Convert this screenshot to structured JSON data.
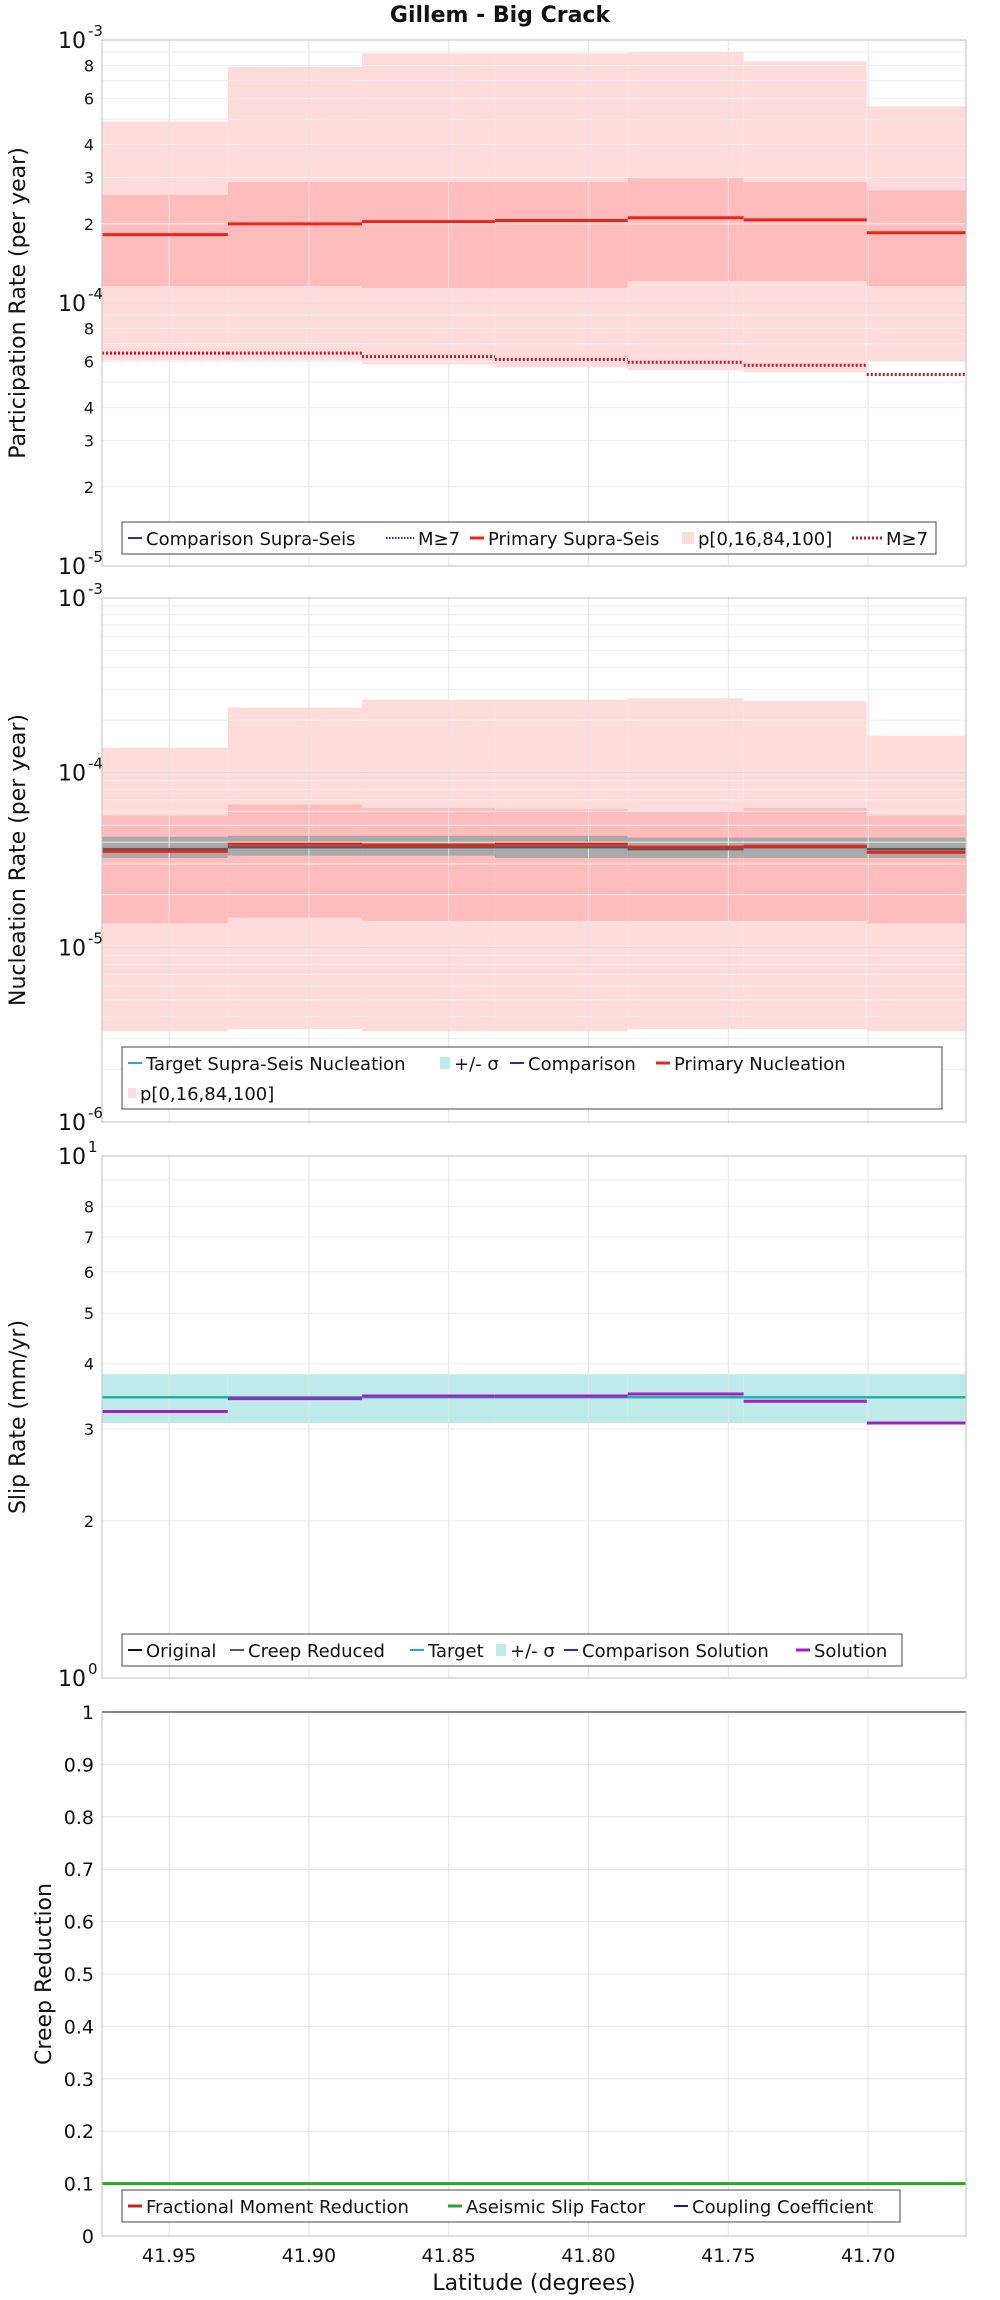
{
  "title": "Gillem - Big Crack",
  "colors": {
    "primary": "#e8241b",
    "band_outer": "#ffdcdc",
    "band_inner": "#ffbcbc",
    "comparison": "#2b2bb8",
    "target": "#22b2a6",
    "target_band": "#bfeaea",
    "gray_band": "#a9a9a9",
    "gray_line": "#5a5a5a",
    "solution": "#a31fc4",
    "aseismic": "#22aa22",
    "fractional": "#d11a1a",
    "coupling": "#1a1a8c"
  },
  "chart_data": [
    {
      "id": "participation",
      "type": "line",
      "step": true,
      "ylabel": "Participation Rate (per year)",
      "yscale": "log",
      "ylim": [
        1e-05,
        0.001
      ],
      "xlim": [
        41.974,
        41.665
      ],
      "x_edges": [
        41.974,
        41.929,
        41.881,
        41.8335,
        41.786,
        41.7445,
        41.7005,
        41.665
      ],
      "series": [
        {
          "name": "Primary Supra-Seis",
          "values": [
            0.000182,
            0.0002,
            0.000204,
            0.000206,
            0.000211,
            0.000207,
            0.000185
          ]
        },
        {
          "name": "M≥7",
          "values": [
            6.45e-05,
            6.45e-05,
            6.25e-05,
            6.1e-05,
            5.95e-05,
            5.8e-05,
            5.35e-05
          ]
        }
      ],
      "bands": [
        {
          "name": "p[0,16,84,100]",
          "lower": [
            6.05e-05,
            6.05e-05,
            5.85e-05,
            5.7e-05,
            5.55e-05,
            5.45e-05,
            6e-05
          ],
          "upper": [
            0.00049,
            0.00079,
            0.00089,
            0.00089,
            0.0009,
            0.00083,
            0.00056
          ]
        },
        {
          "name": "p[0,16,84,100]",
          "lower": [
            0.000116,
            0.000116,
            0.000114,
            0.000114,
            0.000121,
            0.000121,
            0.000116
          ],
          "upper": [
            0.000258,
            0.000288,
            0.000288,
            0.000288,
            0.000298,
            0.000288,
            0.000268
          ]
        }
      ],
      "legend": [
        "Comparison Supra-Seis",
        "M≥7",
        "Primary Supra-Seis",
        "p[0,16,84,100]",
        "M≥7"
      ]
    },
    {
      "id": "nucleation",
      "type": "line",
      "step": true,
      "ylabel": "Nucleation Rate (per year)",
      "yscale": "log",
      "ylim": [
        1e-06,
        0.001
      ],
      "xlim": [
        41.974,
        41.665
      ],
      "x_edges": [
        41.974,
        41.929,
        41.881,
        41.8335,
        41.786,
        41.7445,
        41.7005,
        41.665
      ],
      "series": [
        {
          "name": "Primary Nucleation",
          "values": [
            3.55e-05,
            3.9e-05,
            3.85e-05,
            3.9e-05,
            3.75e-05,
            3.8e-05,
            3.5e-05
          ]
        },
        {
          "name": "Comparison",
          "values": [
            3.65e-05,
            3.75e-05,
            3.75e-05,
            3.75e-05,
            3.65e-05,
            3.75e-05,
            3.65e-05
          ]
        }
      ],
      "bands": [
        {
          "name": "p[0,16,84,100]",
          "lower": [
            3.3e-06,
            3.4e-06,
            3.3e-06,
            3.3e-06,
            3.4e-06,
            3.4e-06,
            3.3e-06
          ],
          "upper": [
            0.000139,
            0.000236,
            0.000262,
            0.000262,
            0.000267,
            0.000257,
            0.000163
          ]
        },
        {
          "name": "p[0,16,84,100]",
          "lower": [
            1.37e-05,
            1.48e-05,
            1.42e-05,
            1.42e-05,
            1.42e-05,
            1.42e-05,
            1.37e-05
          ],
          "upper": [
            5.68e-05,
            6.58e-05,
            6.28e-05,
            6.18e-05,
            5.98e-05,
            6.28e-05,
            5.68e-05
          ]
        },
        {
          "name": "+/- σ",
          "lower": [
            3.25e-05,
            3.35e-05,
            3.35e-05,
            3.25e-05,
            3.25e-05,
            3.25e-05,
            3.25e-05
          ],
          "upper": [
            4.3e-05,
            4.35e-05,
            4.35e-05,
            4.35e-05,
            4.25e-05,
            4.25e-05,
            4.25e-05
          ]
        }
      ],
      "legend": [
        "Target Supra-Seis Nucleation",
        "+/- σ",
        "Comparison",
        "Primary Nucleation",
        "p[0,16,84,100]"
      ]
    },
    {
      "id": "slip",
      "type": "line",
      "step": true,
      "ylabel": "Slip Rate (mm/yr)",
      "yscale": "log",
      "ylim": [
        1,
        10
      ],
      "xlim": [
        41.974,
        41.665
      ],
      "x_edges": [
        41.974,
        41.929,
        41.881,
        41.8335,
        41.786,
        41.7445,
        41.7005,
        41.665
      ],
      "series": [
        {
          "name": "Target",
          "values": [
            3.45,
            3.45,
            3.45,
            3.45,
            3.45,
            3.45,
            3.45
          ]
        },
        {
          "name": "Solution",
          "values": [
            3.24,
            3.43,
            3.47,
            3.47,
            3.5,
            3.39,
            3.08
          ]
        }
      ],
      "bands": [
        {
          "name": "+/- σ",
          "lower": [
            3.08,
            3.08,
            3.08,
            3.08,
            3.08,
            3.08,
            3.08
          ],
          "upper": [
            3.82,
            3.82,
            3.82,
            3.82,
            3.82,
            3.82,
            3.82
          ]
        }
      ],
      "legend": [
        "Original",
        "Creep Reduced",
        "Target",
        "+/- σ",
        "Comparison Solution",
        "Solution"
      ]
    },
    {
      "id": "creep",
      "type": "line",
      "ylabel": "Creep Reduction",
      "xlabel": "Latitude (degrees)",
      "yscale": "linear",
      "ylim": [
        0,
        1
      ],
      "xlim": [
        41.974,
        41.665
      ],
      "x_ticks": [
        "41.95",
        "41.90",
        "41.85",
        "41.80",
        "41.75",
        "41.70"
      ],
      "series": [
        {
          "name": "Aseismic Slip Factor",
          "x": [
            41.974,
            41.665
          ],
          "values": [
            0.1,
            0.1
          ]
        },
        {
          "name": "Coupling Coefficient",
          "x": [
            41.974,
            41.665
          ],
          "values": [
            1.0,
            1.0
          ]
        }
      ],
      "legend": [
        "Fractional Moment Reduction",
        "Aseismic Slip Factor",
        "Coupling Coefficient"
      ]
    }
  ]
}
